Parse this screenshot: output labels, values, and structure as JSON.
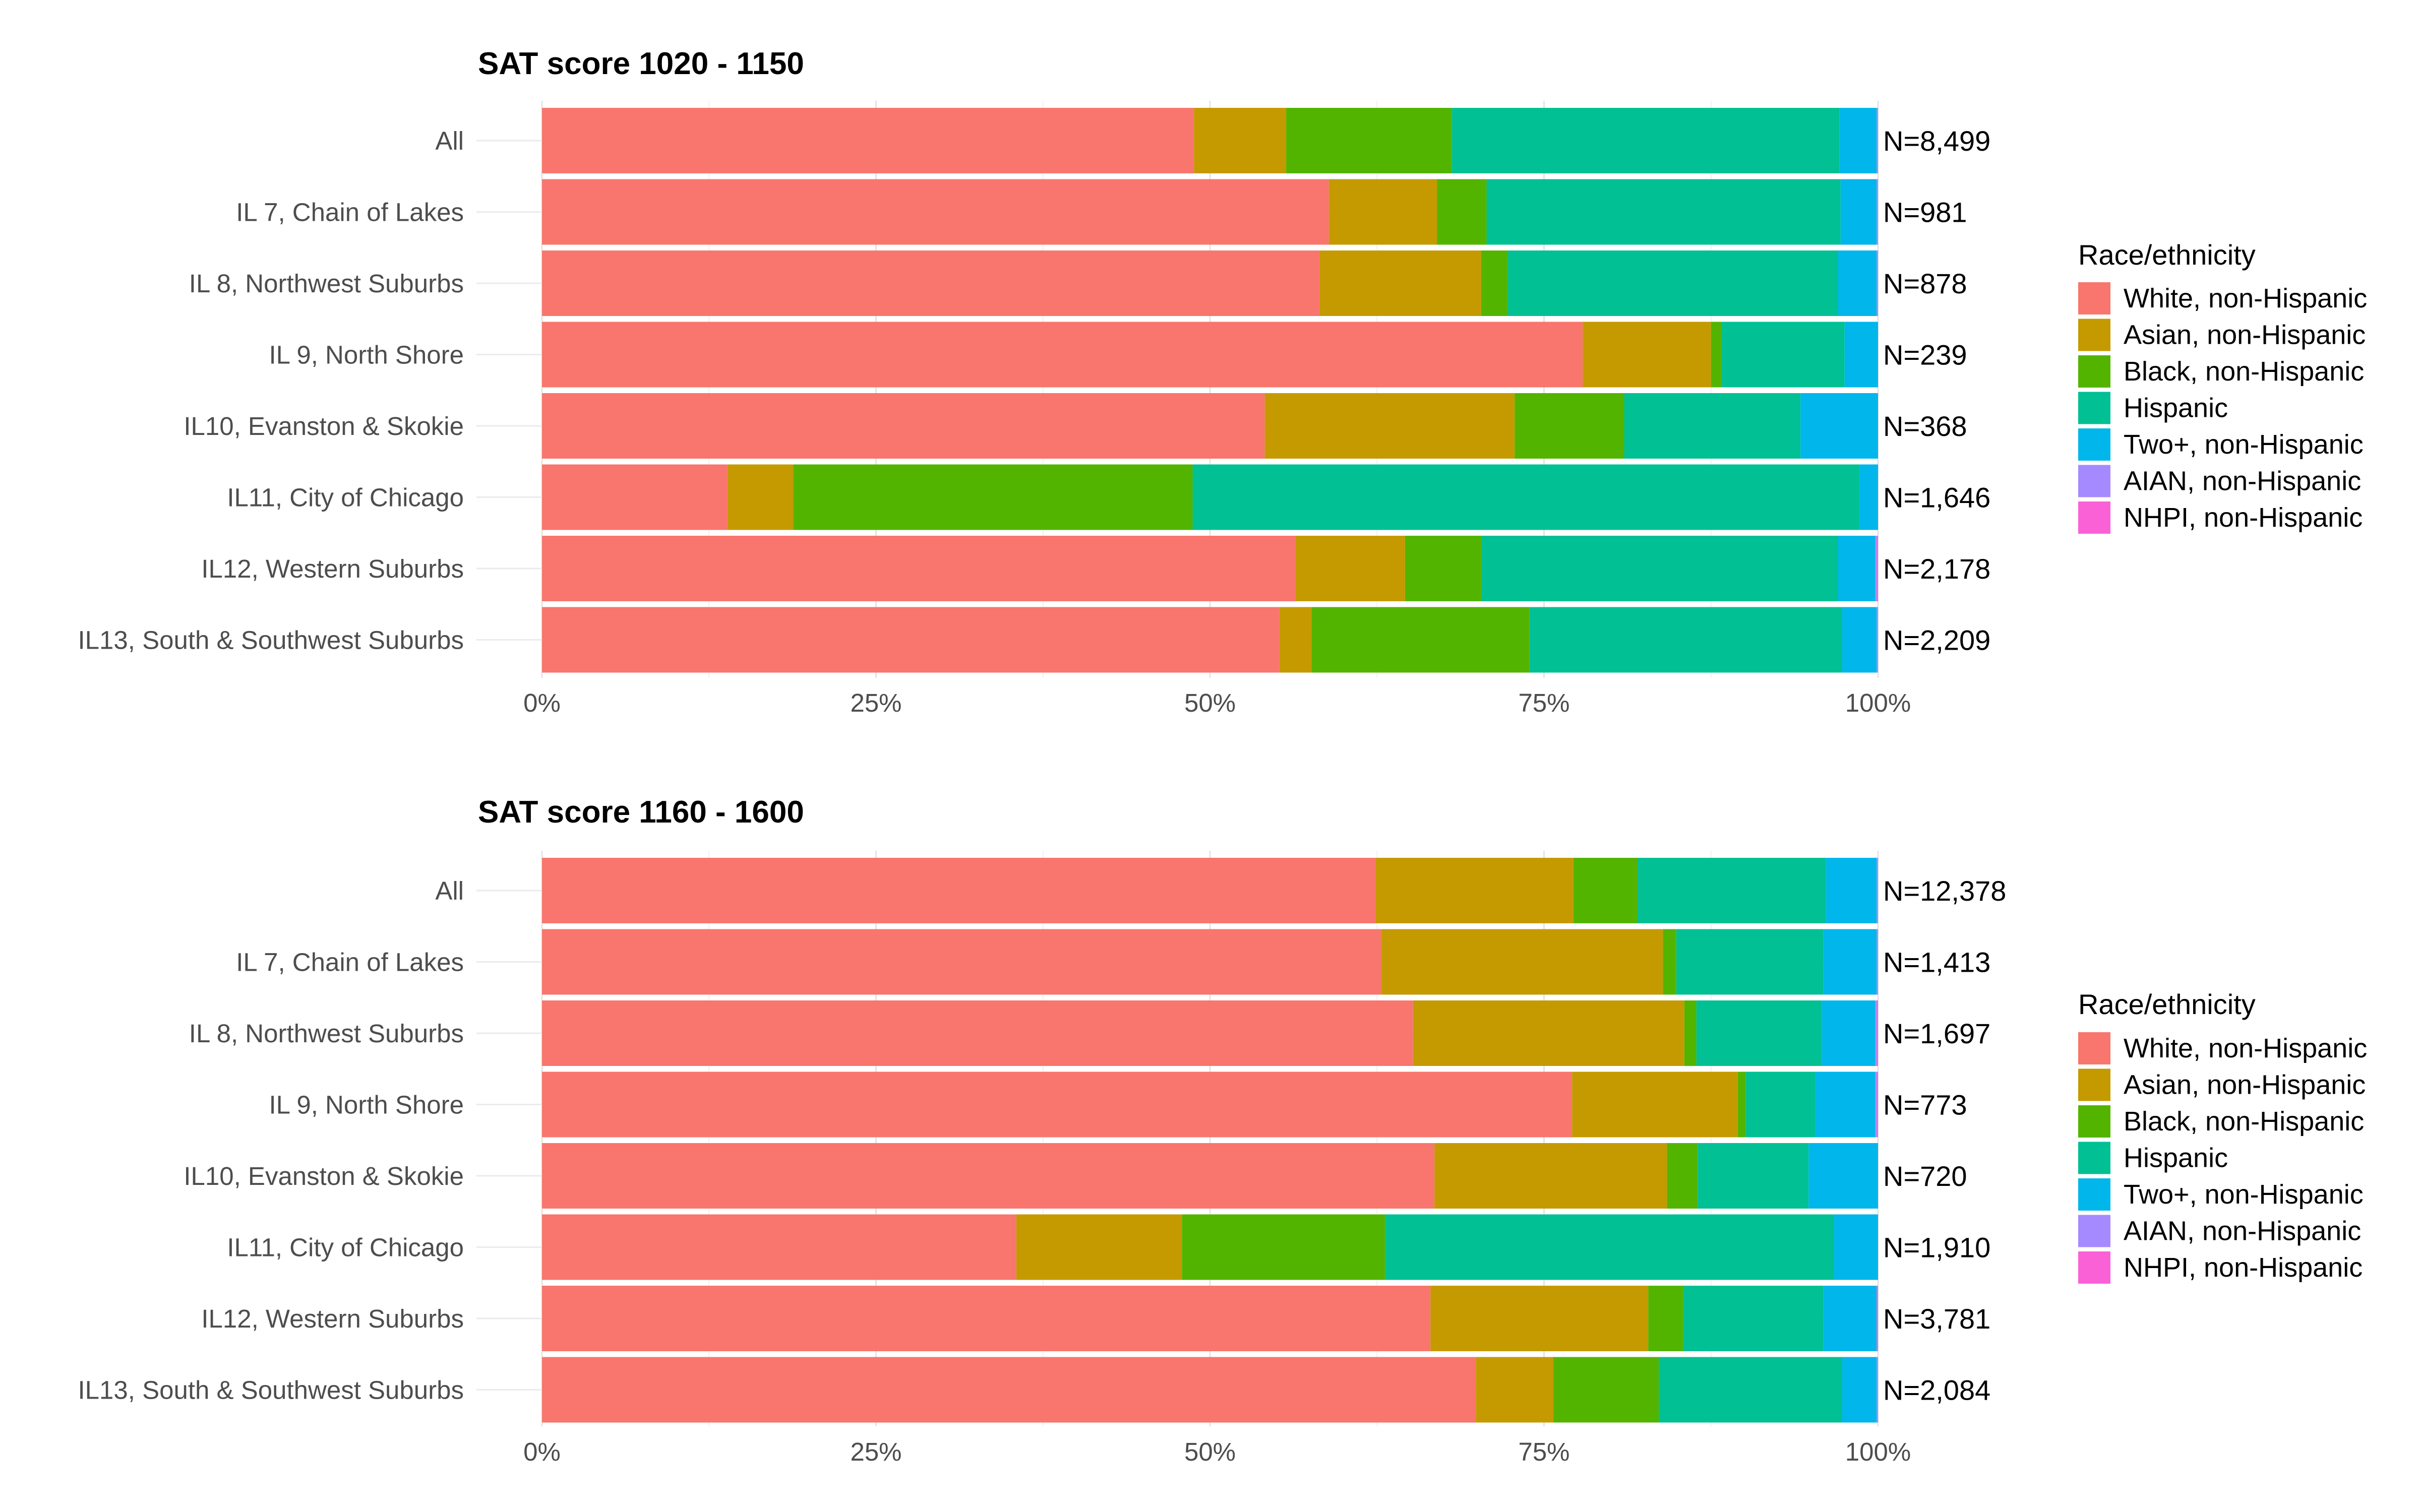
{
  "chart_data": [
    {
      "type": "bar",
      "orientation": "horizontal",
      "stacked": "percent",
      "title": "SAT score 1020 - 1150",
      "categories": [
        "All",
        "IL 7, Chain of Lakes",
        "IL 8, Northwest Suburbs",
        "IL 9, North Shore",
        "IL10, Evanston & Skokie",
        "IL11, City of Chicago",
        "IL12, Western Suburbs",
        "IL13, South & Southwest Suburbs"
      ],
      "n_labels": [
        "N=8,499",
        "N=981",
        "N=878",
        "N=239",
        "N=368",
        "N=1,646",
        "N=2,178",
        "N=2,209"
      ],
      "x_ticks": [
        "0%",
        "25%",
        "50%",
        "75%",
        "100%"
      ],
      "xlim": [
        0,
        100
      ],
      "grid": true,
      "legend_title": "Race/ethnicity",
      "legend_position": "right",
      "series": [
        {
          "name": "White, non-Hispanic",
          "color": "#F8766D",
          "values": [
            48.8,
            58.9,
            58.2,
            77.9,
            54.1,
            13.9,
            56.4,
            55.2
          ]
        },
        {
          "name": "Asian, non-Hispanic",
          "color": "#C49A00",
          "values": [
            6.9,
            8.1,
            12.1,
            9.6,
            18.7,
            4.9,
            8.2,
            2.4
          ]
        },
        {
          "name": "Black, non-Hispanic",
          "color": "#53B400",
          "values": [
            12.4,
            3.7,
            2.0,
            0.8,
            8.2,
            29.9,
            5.7,
            16.3
          ]
        },
        {
          "name": "Hispanic",
          "color": "#00C094",
          "values": [
            29.0,
            26.5,
            24.7,
            9.2,
            13.2,
            49.9,
            26.7,
            23.4
          ]
        },
        {
          "name": "Two+, non-Hispanic",
          "color": "#00B6EB",
          "values": [
            2.8,
            2.7,
            2.9,
            2.5,
            5.8,
            1.4,
            2.8,
            2.6
          ]
        },
        {
          "name": "AIAN, non-Hispanic",
          "color": "#A58AFF",
          "values": [
            0.1,
            0.1,
            0.1,
            0.0,
            0.0,
            0.0,
            0.1,
            0.1
          ]
        },
        {
          "name": "NHPI, non-Hispanic",
          "color": "#FB61D7",
          "values": [
            0.0,
            0.0,
            0.0,
            0.0,
            0.0,
            0.0,
            0.1,
            0.0
          ]
        }
      ]
    },
    {
      "type": "bar",
      "orientation": "horizontal",
      "stacked": "percent",
      "title": "SAT score 1160 - 1600",
      "categories": [
        "All",
        "IL 7, Chain of Lakes",
        "IL 8, Northwest Suburbs",
        "IL 9, North Shore",
        "IL10, Evanston & Skokie",
        "IL11, City of Chicago",
        "IL12, Western Suburbs",
        "IL13, South & Southwest Suburbs"
      ],
      "n_labels": [
        "N=12,378",
        "N=1,413",
        "N=1,697",
        "N=773",
        "N=720",
        "N=1,910",
        "N=3,781",
        "N=2,084"
      ],
      "x_ticks": [
        "0%",
        "25%",
        "50%",
        "75%",
        "100%"
      ],
      "xlim": [
        0,
        100
      ],
      "grid": true,
      "legend_title": "Race/ethnicity",
      "legend_position": "right",
      "series": [
        {
          "name": "White, non-Hispanic",
          "color": "#F8766D",
          "values": [
            62.4,
            62.8,
            65.2,
            77.1,
            66.8,
            35.5,
            66.5,
            69.9
          ]
        },
        {
          "name": "Asian, non-Hispanic",
          "color": "#C49A00",
          "values": [
            14.8,
            21.1,
            20.3,
            12.4,
            17.4,
            12.4,
            16.3,
            5.8
          ]
        },
        {
          "name": "Black, non-Hispanic",
          "color": "#53B400",
          "values": [
            4.8,
            1.0,
            0.9,
            0.6,
            2.3,
            15.2,
            2.6,
            7.9
          ]
        },
        {
          "name": "Hispanic",
          "color": "#00C094",
          "values": [
            14.1,
            11.0,
            9.4,
            5.2,
            8.3,
            33.6,
            10.5,
            13.7
          ]
        },
        {
          "name": "Two+, non-Hispanic",
          "color": "#00B6EB",
          "values": [
            3.8,
            4.0,
            4.0,
            4.5,
            5.2,
            3.3,
            4.0,
            2.6
          ]
        },
        {
          "name": "AIAN, non-Hispanic",
          "color": "#A58AFF",
          "values": [
            0.1,
            0.1,
            0.1,
            0.1,
            0.0,
            0.0,
            0.0,
            0.1
          ]
        },
        {
          "name": "NHPI, non-Hispanic",
          "color": "#FB61D7",
          "values": [
            0.0,
            0.0,
            0.1,
            0.1,
            0.0,
            0.0,
            0.1,
            0.0
          ]
        }
      ]
    }
  ]
}
